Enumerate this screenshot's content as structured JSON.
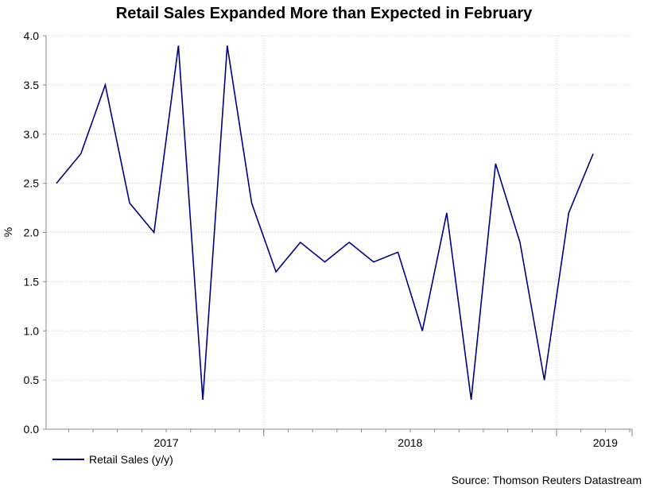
{
  "chart_data": {
    "type": "line",
    "title": "Retail Sales Expanded More than Expected in February",
    "ylabel": "%",
    "xlabel": "",
    "ylim": [
      0,
      4
    ],
    "yticks": [
      "0.0",
      "0.5",
      "1.0",
      "1.5",
      "2.0",
      "2.5",
      "3.0",
      "3.5",
      "4.0"
    ],
    "xtick_labels": [
      {
        "label": "2017",
        "index": 4.5
      },
      {
        "label": "2018",
        "index": 14.5
      },
      {
        "label": "2019",
        "index": 22.5
      }
    ],
    "year_boundaries": [
      9,
      21
    ],
    "series": [
      {
        "name": "Retail Sales (y/y)",
        "color": "#000080",
        "values": [
          2.5,
          2.8,
          3.5,
          2.3,
          2.0,
          3.9,
          0.3,
          3.9,
          2.3,
          1.6,
          1.9,
          1.7,
          1.9,
          1.7,
          1.8,
          1.0,
          2.2,
          0.3,
          2.7,
          1.9,
          0.5,
          2.2,
          2.8
        ]
      }
    ],
    "grid": true,
    "legend": "bottom-left"
  },
  "source": "Source: Thomson Reuters Datastream"
}
